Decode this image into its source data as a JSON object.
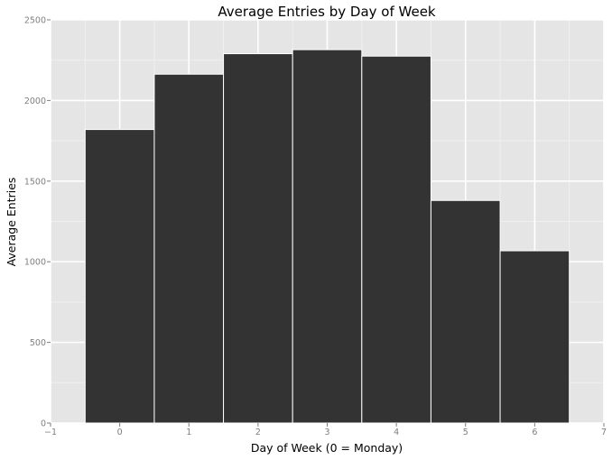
{
  "chart_data": {
    "type": "bar",
    "title": "Average Entries by Day of Week",
    "xlabel": "Day of Week (0 = Monday)",
    "ylabel": "Average Entries",
    "x": [
      0,
      1,
      2,
      3,
      4,
      5,
      6
    ],
    "values": [
      1820,
      2163,
      2290,
      2315,
      2275,
      1380,
      1068
    ],
    "xlim": [
      -1,
      7
    ],
    "ylim": [
      0,
      2500
    ],
    "x_ticks": [
      -1,
      0,
      1,
      2,
      3,
      4,
      5,
      6,
      7
    ],
    "y_ticks": [
      0,
      500,
      1000,
      1500,
      2000,
      2500
    ],
    "grid": true,
    "legend": "none",
    "colors": {
      "bar": "#333333",
      "bar_edge": "#ffffff",
      "panel": "#e5e5e5",
      "grid_major": "#ffffff",
      "grid_minor": "#f0f0f0",
      "tick_text": "#7f7f7f"
    }
  }
}
